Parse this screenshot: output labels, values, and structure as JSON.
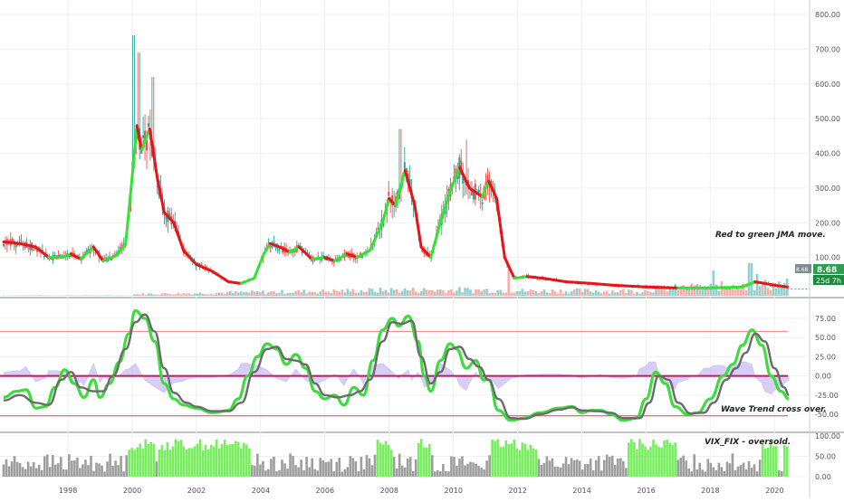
{
  "chart_data": [
    {
      "type": "candlestick",
      "ylim": [
        0,
        800
      ],
      "yticks": [
        "100.00",
        "200.00",
        "300.00",
        "400.00",
        "500.00",
        "600.00",
        "700.00",
        "800.00"
      ],
      "x_ticks": [
        "1998",
        "2000",
        "2002",
        "2004",
        "2006",
        "2008",
        "2010",
        "2012",
        "2014",
        "2016",
        "2018",
        "2020"
      ],
      "annotation": "Red to green JMA move.",
      "price_label": "8.68",
      "countdown_label": "25d 7h",
      "left_tag": "8.68",
      "grid": true,
      "jma_path": [
        [
          1996.0,
          145
        ],
        [
          1996.5,
          140
        ],
        [
          1997.0,
          130
        ],
        [
          1997.4,
          100
        ],
        [
          1997.8,
          100
        ],
        [
          1998.1,
          110
        ],
        [
          1998.4,
          95
        ],
        [
          1998.8,
          130
        ],
        [
          1999.1,
          90
        ],
        [
          1999.5,
          105
        ],
        [
          1999.8,
          140
        ],
        [
          2000.0,
          330
        ],
        [
          2000.15,
          480
        ],
        [
          2000.3,
          410
        ],
        [
          2000.55,
          470
        ],
        [
          2000.8,
          320
        ],
        [
          2001.0,
          230
        ],
        [
          2001.3,
          200
        ],
        [
          2001.6,
          120
        ],
        [
          2002.0,
          80
        ],
        [
          2002.5,
          60
        ],
        [
          2003.0,
          30
        ],
        [
          2003.4,
          25
        ],
        [
          2003.8,
          40
        ],
        [
          2004.1,
          110
        ],
        [
          2004.3,
          140
        ],
        [
          2004.6,
          130
        ],
        [
          2004.9,
          115
        ],
        [
          2005.2,
          130
        ],
        [
          2005.6,
          95
        ],
        [
          2006.0,
          100
        ],
        [
          2006.3,
          90
        ],
        [
          2006.7,
          110
        ],
        [
          2007.0,
          100
        ],
        [
          2007.4,
          120
        ],
        [
          2007.8,
          200
        ],
        [
          2008.0,
          270
        ],
        [
          2008.2,
          250
        ],
        [
          2008.5,
          350
        ],
        [
          2008.8,
          250
        ],
        [
          2009.0,
          130
        ],
        [
          2009.3,
          100
        ],
        [
          2009.6,
          200
        ],
        [
          2009.9,
          290
        ],
        [
          2010.2,
          360
        ],
        [
          2010.5,
          300
        ],
        [
          2010.9,
          275
        ],
        [
          2011.1,
          320
        ],
        [
          2011.35,
          270
        ],
        [
          2011.6,
          100
        ],
        [
          2011.9,
          40
        ],
        [
          2012.3,
          45
        ],
        [
          2012.8,
          40
        ],
        [
          2013.5,
          30
        ],
        [
          2014.3,
          25
        ],
        [
          2015.0,
          20
        ],
        [
          2016.0,
          15
        ],
        [
          2017.0,
          12
        ],
        [
          2018.0,
          12
        ],
        [
          2019.0,
          15
        ],
        [
          2019.4,
          30
        ],
        [
          2020.0,
          20
        ],
        [
          2020.4,
          15
        ]
      ],
      "volume_range": [
        0,
        40
      ]
    },
    {
      "type": "line",
      "title": "Wave Trend",
      "ylim": [
        -65,
        90
      ],
      "yticks": [
        "75.00",
        "50.00",
        "25.00",
        "0.00",
        "-25.00",
        "-50.00"
      ],
      "overbought": 58,
      "oversold": -52,
      "zero": 0,
      "annotation": "Wave Trend cross over.",
      "series": [
        {
          "values": [
            [
              1996.0,
              -28
            ],
            [
              1996.4,
              -20
            ],
            [
              1996.7,
              -18
            ],
            [
              1997.0,
              -42
            ],
            [
              1997.3,
              -40
            ],
            [
              1997.6,
              -15
            ],
            [
              1997.9,
              8
            ],
            [
              1998.2,
              -10
            ],
            [
              1998.5,
              -28
            ],
            [
              1998.8,
              -5
            ],
            [
              1999.0,
              -28
            ],
            [
              1999.3,
              -10
            ],
            [
              1999.6,
              18
            ],
            [
              1999.9,
              55
            ],
            [
              2000.1,
              85
            ],
            [
              2000.4,
              75
            ],
            [
              2000.7,
              45
            ],
            [
              2001.0,
              -10
            ],
            [
              2001.3,
              -30
            ],
            [
              2001.6,
              -38
            ],
            [
              2002.0,
              -42
            ],
            [
              2002.5,
              -48
            ],
            [
              2003.0,
              -45
            ],
            [
              2003.3,
              -30
            ],
            [
              2003.6,
              0
            ],
            [
              2003.9,
              25
            ],
            [
              2004.2,
              42
            ],
            [
              2004.5,
              35
            ],
            [
              2004.8,
              15
            ],
            [
              2005.1,
              28
            ],
            [
              2005.4,
              10
            ],
            [
              2005.7,
              -20
            ],
            [
              2006.0,
              -30
            ],
            [
              2006.3,
              -25
            ],
            [
              2006.6,
              -38
            ],
            [
              2006.9,
              -15
            ],
            [
              2007.2,
              -25
            ],
            [
              2007.5,
              20
            ],
            [
              2007.8,
              60
            ],
            [
              2008.1,
              75
            ],
            [
              2008.3,
              65
            ],
            [
              2008.6,
              78
            ],
            [
              2008.9,
              45
            ],
            [
              2009.1,
              0
            ],
            [
              2009.3,
              -20
            ],
            [
              2009.6,
              20
            ],
            [
              2009.9,
              42
            ],
            [
              2010.1,
              35
            ],
            [
              2010.4,
              10
            ],
            [
              2010.7,
              20
            ],
            [
              2010.95,
              -5
            ],
            [
              2011.1,
              -5
            ],
            [
              2011.4,
              -45
            ],
            [
              2011.8,
              -58
            ],
            [
              2012.2,
              -55
            ],
            [
              2012.7,
              -48
            ],
            [
              2013.3,
              -42
            ],
            [
              2013.7,
              -40
            ],
            [
              2014.0,
              -48
            ],
            [
              2014.3,
              -45
            ],
            [
              2014.6,
              -45
            ],
            [
              2014.9,
              -50
            ],
            [
              2015.3,
              -58
            ],
            [
              2015.7,
              -55
            ],
            [
              2016.0,
              -30
            ],
            [
              2016.3,
              5
            ],
            [
              2016.6,
              -10
            ],
            [
              2016.9,
              -40
            ],
            [
              2017.3,
              -50
            ],
            [
              2017.6,
              -48
            ],
            [
              2018.0,
              -30
            ],
            [
              2018.4,
              0
            ],
            [
              2018.7,
              15
            ],
            [
              2019.0,
              40
            ],
            [
              2019.3,
              60
            ],
            [
              2019.6,
              40
            ],
            [
              2019.9,
              0
            ],
            [
              2020.2,
              -20
            ],
            [
              2020.45,
              -30
            ]
          ]
        },
        {
          "values": [
            [
              1996.0,
              -32
            ],
            [
              1996.5,
              -25
            ],
            [
              1997.0,
              -35
            ],
            [
              1997.4,
              -38
            ],
            [
              1997.8,
              -5
            ],
            [
              1998.1,
              5
            ],
            [
              1998.4,
              -15
            ],
            [
              1998.8,
              -20
            ],
            [
              1999.1,
              -20
            ],
            [
              1999.4,
              0
            ],
            [
              1999.8,
              35
            ],
            [
              2000.1,
              70
            ],
            [
              2000.4,
              80
            ],
            [
              2000.7,
              58
            ],
            [
              2001.0,
              10
            ],
            [
              2001.3,
              -22
            ],
            [
              2001.7,
              -35
            ],
            [
              2002.0,
              -40
            ],
            [
              2002.5,
              -46
            ],
            [
              2003.0,
              -46
            ],
            [
              2003.4,
              -35
            ],
            [
              2003.8,
              5
            ],
            [
              2004.2,
              35
            ],
            [
              2004.5,
              38
            ],
            [
              2004.8,
              22
            ],
            [
              2005.1,
              20
            ],
            [
              2005.4,
              15
            ],
            [
              2005.7,
              -10
            ],
            [
              2006.0,
              -25
            ],
            [
              2006.4,
              -28
            ],
            [
              2006.8,
              -25
            ],
            [
              2007.1,
              -20
            ],
            [
              2007.4,
              -5
            ],
            [
              2007.8,
              45
            ],
            [
              2008.1,
              70
            ],
            [
              2008.4,
              68
            ],
            [
              2008.7,
              72
            ],
            [
              2009.0,
              25
            ],
            [
              2009.3,
              -10
            ],
            [
              2009.6,
              5
            ],
            [
              2009.9,
              35
            ],
            [
              2010.2,
              38
            ],
            [
              2010.5,
              22
            ],
            [
              2010.8,
              12
            ],
            [
              2011.1,
              -5
            ],
            [
              2011.4,
              -30
            ],
            [
              2011.8,
              -55
            ],
            [
              2012.2,
              -56
            ],
            [
              2012.7,
              -50
            ],
            [
              2013.3,
              -44
            ],
            [
              2013.7,
              -41
            ],
            [
              2014.0,
              -45
            ],
            [
              2014.5,
              -46
            ],
            [
              2014.9,
              -48
            ],
            [
              2015.3,
              -55
            ],
            [
              2015.8,
              -55
            ],
            [
              2016.1,
              -35
            ],
            [
              2016.4,
              0
            ],
            [
              2016.7,
              -5
            ],
            [
              2017.0,
              -35
            ],
            [
              2017.4,
              -49
            ],
            [
              2017.8,
              -48
            ],
            [
              2018.1,
              -35
            ],
            [
              2018.5,
              -5
            ],
            [
              2018.8,
              10
            ],
            [
              2019.1,
              30
            ],
            [
              2019.4,
              55
            ],
            [
              2019.7,
              45
            ],
            [
              2020.0,
              10
            ],
            [
              2020.3,
              -15
            ],
            [
              2020.45,
              -25
            ]
          ]
        }
      ]
    },
    {
      "type": "bar",
      "title": "VIX_FIX - oversold.",
      "ylim": [
        0,
        100
      ],
      "yticks": [
        "100.00",
        "50.00",
        "0.00"
      ],
      "colors": {
        "normal": "#9e9e9e",
        "oversold": "#76ee5e"
      },
      "oversold_ranges": [
        [
          1999.85,
          2000.75
        ],
        [
          2000.8,
          2003.7
        ],
        [
          2007.6,
          2008.15
        ],
        [
          2008.9,
          2009.3
        ],
        [
          2011.2,
          2012.6
        ],
        [
          2015.45,
          2016.95
        ],
        [
          2019.6,
          2020.1
        ],
        [
          2020.25,
          2020.45
        ]
      ]
    }
  ]
}
